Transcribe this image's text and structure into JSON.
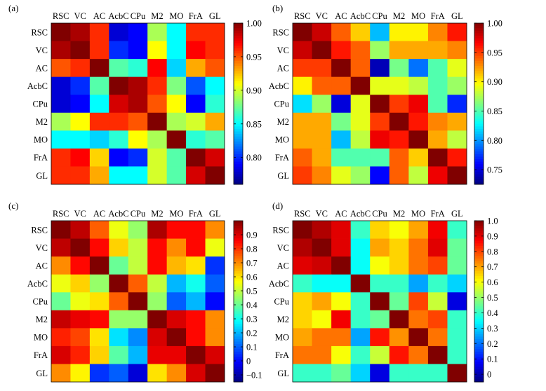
{
  "panels_text": [
    "(a)",
    "(b)",
    "(c)",
    "(d)"
  ],
  "labels": [
    "RSC",
    "VC",
    "AC",
    "AcbC",
    "CPu",
    "M2",
    "MO",
    "FrA",
    "GL"
  ],
  "chart_data": [
    {
      "type": "heatmap",
      "panel": "(a)",
      "rows": [
        "RSC",
        "VC",
        "AC",
        "AcbC",
        "CPu",
        "M2",
        "MO",
        "FrA",
        "GL"
      ],
      "cols": [
        "RSC",
        "VC",
        "AC",
        "AcbC",
        "CPu",
        "M2",
        "MO",
        "FrA",
        "GL"
      ],
      "colorbar_ticks": [
        "1.00",
        "0.95",
        "0.90",
        "0.85",
        "0.80"
      ],
      "colorbar_tick_values": [
        1.0,
        0.95,
        0.9,
        0.85,
        0.8
      ],
      "vmin": 0.76,
      "vmax": 1.0,
      "values": [
        [
          1.0,
          0.99,
          0.96,
          0.78,
          0.79,
          0.89,
          0.85,
          0.96,
          0.96
        ],
        [
          0.99,
          1.0,
          0.96,
          0.8,
          0.79,
          0.91,
          0.85,
          0.97,
          0.96
        ],
        [
          0.95,
          0.96,
          1.0,
          0.87,
          0.86,
          0.97,
          0.84,
          0.93,
          0.95
        ],
        [
          0.78,
          0.8,
          0.87,
          1.0,
          0.99,
          0.96,
          0.88,
          0.81,
          0.85
        ],
        [
          0.78,
          0.79,
          0.85,
          0.98,
          0.99,
          0.95,
          0.91,
          0.79,
          0.86
        ],
        [
          0.89,
          0.91,
          0.96,
          0.96,
          0.95,
          1.0,
          0.89,
          0.9,
          0.93
        ],
        [
          0.85,
          0.85,
          0.84,
          0.86,
          0.91,
          0.89,
          1.0,
          0.86,
          0.87
        ],
        [
          0.96,
          0.97,
          0.92,
          0.79,
          0.8,
          0.9,
          0.87,
          1.0,
          0.98
        ],
        [
          0.96,
          0.96,
          0.93,
          0.85,
          0.85,
          0.9,
          0.87,
          0.98,
          1.0
        ]
      ]
    },
    {
      "type": "heatmap",
      "panel": "(b)",
      "rows": [
        "RSC",
        "VC",
        "AC",
        "AcbC",
        "CPu",
        "M2",
        "MO",
        "FrA",
        "GL"
      ],
      "cols": [
        "RSC",
        "VC",
        "AC",
        "AcbC",
        "CPu",
        "M2",
        "MO",
        "FrA",
        "GL"
      ],
      "colorbar_ticks": [
        "1.00",
        "0.95",
        "0.90",
        "0.85",
        "0.80",
        "0.75"
      ],
      "colorbar_tick_values": [
        1.0,
        0.95,
        0.9,
        0.85,
        0.8,
        0.75
      ],
      "vmin": 0.725,
      "vmax": 1.0,
      "values": [
        [
          1.0,
          0.98,
          0.94,
          0.91,
          0.81,
          0.9,
          0.9,
          0.93,
          0.96
        ],
        [
          0.98,
          1.0,
          0.96,
          0.94,
          0.87,
          0.92,
          0.92,
          0.92,
          0.93
        ],
        [
          0.95,
          0.95,
          1.0,
          0.94,
          0.74,
          0.86,
          0.79,
          0.85,
          0.89
        ],
        [
          0.9,
          0.94,
          0.94,
          1.0,
          0.89,
          0.89,
          0.88,
          0.85,
          0.87
        ],
        [
          0.82,
          0.87,
          0.75,
          0.89,
          1.0,
          0.95,
          0.97,
          0.85,
          0.77
        ],
        [
          0.92,
          0.92,
          0.86,
          0.89,
          0.95,
          1.0,
          0.96,
          0.93,
          0.92
        ],
        [
          0.92,
          0.92,
          0.81,
          0.88,
          0.97,
          0.96,
          1.0,
          0.92,
          0.88
        ],
        [
          0.94,
          0.92,
          0.85,
          0.85,
          0.85,
          0.94,
          0.91,
          1.0,
          0.96
        ],
        [
          0.95,
          0.93,
          0.89,
          0.87,
          0.76,
          0.94,
          0.88,
          0.97,
          1.0
        ]
      ]
    },
    {
      "type": "heatmap",
      "panel": "(c)",
      "rows": [
        "RSC",
        "VC",
        "AC",
        "AcbC",
        "CPu",
        "M2",
        "MO",
        "FrA",
        "GL"
      ],
      "cols": [
        "RSC",
        "VC",
        "AC",
        "AcbC",
        "CPu",
        "M2",
        "MO",
        "FrA",
        "GL"
      ],
      "colorbar_ticks": [
        "0.9",
        "0.8",
        "0.7",
        "0.6",
        "0.5",
        "0.4",
        "0.3",
        "0.2",
        "0.1",
        "0",
        "−0.1"
      ],
      "colorbar_tick_values": [
        0.9,
        0.8,
        0.7,
        0.6,
        0.5,
        0.4,
        0.3,
        0.2,
        0.1,
        0,
        -0.1
      ],
      "vmin": -0.15,
      "vmax": 1.0,
      "values": [
        [
          1.0,
          0.93,
          0.75,
          0.55,
          0.45,
          0.95,
          0.85,
          0.85,
          0.7
        ],
        [
          0.93,
          1.0,
          0.85,
          0.62,
          0.5,
          0.85,
          0.7,
          0.85,
          0.55
        ],
        [
          0.7,
          0.85,
          1.0,
          0.4,
          0.5,
          0.85,
          0.65,
          0.6,
          0.05
        ],
        [
          0.55,
          0.62,
          0.45,
          1.0,
          0.75,
          0.5,
          0.2,
          0.3,
          0.1
        ],
        [
          0.4,
          0.55,
          0.6,
          0.75,
          1.0,
          0.45,
          0.1,
          0.2,
          0.0
        ],
        [
          0.92,
          0.88,
          0.85,
          0.45,
          0.45,
          1.0,
          0.9,
          0.85,
          0.7
        ],
        [
          0.82,
          0.78,
          0.6,
          0.25,
          0.15,
          0.9,
          1.0,
          0.85,
          0.7
        ],
        [
          0.9,
          0.82,
          0.62,
          0.38,
          0.2,
          0.88,
          0.88,
          1.0,
          0.9
        ],
        [
          0.7,
          0.58,
          0.05,
          0.1,
          -0.05,
          0.6,
          0.7,
          0.9,
          1.0
        ]
      ]
    },
    {
      "type": "heatmap",
      "panel": "(d)",
      "rows": [
        "RSC",
        "VC",
        "AC",
        "AcbC",
        "CPu",
        "M2",
        "MO",
        "FrA",
        "GL"
      ],
      "cols": [
        "RSC",
        "VC",
        "AC",
        "AcbC",
        "CPu",
        "M2",
        "MO",
        "FrA",
        "GL"
      ],
      "colorbar_ticks": [
        "1.0",
        "0.9",
        "0.8",
        "0.7",
        "0.6",
        "0.5",
        "0.4",
        "0.3",
        "0.2",
        "0.1",
        "0"
      ],
      "colorbar_tick_values": [
        1.0,
        0.9,
        0.8,
        0.7,
        0.6,
        0.5,
        0.4,
        0.3,
        0.2,
        0.1,
        0
      ],
      "vmin": -0.05,
      "vmax": 1.0,
      "values": [
        [
          1.0,
          0.95,
          0.9,
          0.4,
          0.65,
          0.6,
          0.7,
          0.88,
          0.4
        ],
        [
          0.95,
          1.0,
          0.9,
          0.35,
          0.7,
          0.65,
          0.75,
          0.9,
          0.45
        ],
        [
          0.9,
          0.92,
          1.0,
          0.35,
          0.6,
          0.65,
          0.75,
          0.8,
          0.45
        ],
        [
          0.4,
          0.35,
          0.35,
          1.0,
          0.4,
          0.4,
          0.25,
          0.4,
          0.3
        ],
        [
          0.65,
          0.7,
          0.6,
          0.4,
          1.0,
          0.45,
          0.8,
          0.55,
          0.05
        ],
        [
          0.65,
          0.6,
          0.88,
          0.4,
          0.45,
          1.0,
          0.75,
          0.8,
          0.4
        ],
        [
          0.7,
          0.75,
          0.75,
          0.25,
          0.85,
          0.72,
          1.0,
          0.75,
          0.4
        ],
        [
          0.75,
          0.75,
          0.6,
          0.4,
          0.55,
          0.85,
          0.75,
          1.0,
          0.4
        ],
        [
          0.4,
          0.4,
          0.45,
          0.3,
          0.05,
          0.4,
          0.4,
          0.4,
          1.0
        ]
      ]
    }
  ]
}
